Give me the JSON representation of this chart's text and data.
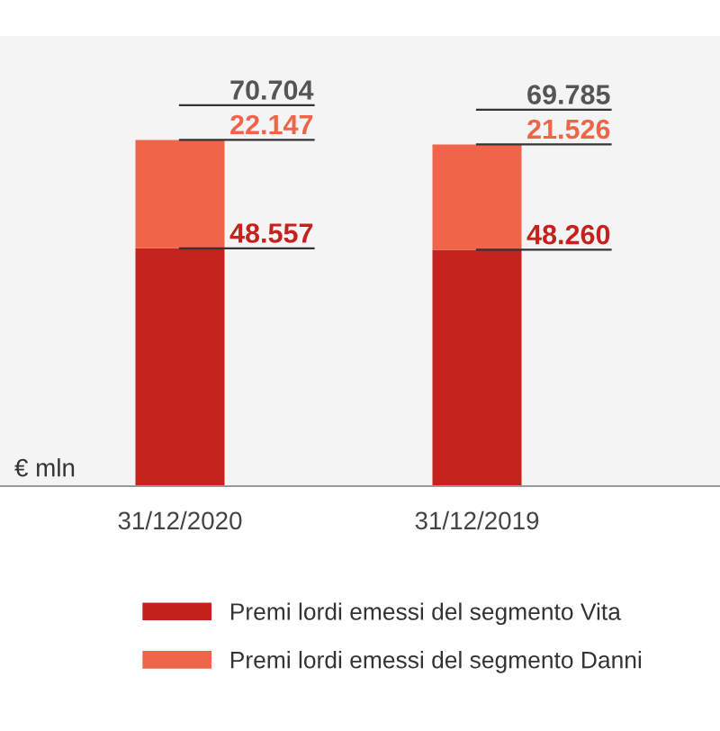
{
  "chart_data": {
    "type": "bar",
    "stacked": true,
    "ylabel": "€ mln",
    "categories": [
      "31/12/2020",
      "31/12/2019"
    ],
    "series": [
      {
        "name": "Premi lordi emessi del segmento Vita",
        "color": "#c4221c",
        "values": [
          48557,
          48260
        ],
        "value_labels": [
          "48.557",
          "48.260"
        ]
      },
      {
        "name": "Premi lordi emessi del segmento Danni",
        "color": "#f0644a",
        "values": [
          22147,
          21526
        ],
        "value_labels": [
          "22.147",
          "21.526"
        ]
      }
    ],
    "totals": [
      "70.704",
      "69.785"
    ],
    "legend": "bottom",
    "grid": false,
    "tick_labels": "x"
  }
}
